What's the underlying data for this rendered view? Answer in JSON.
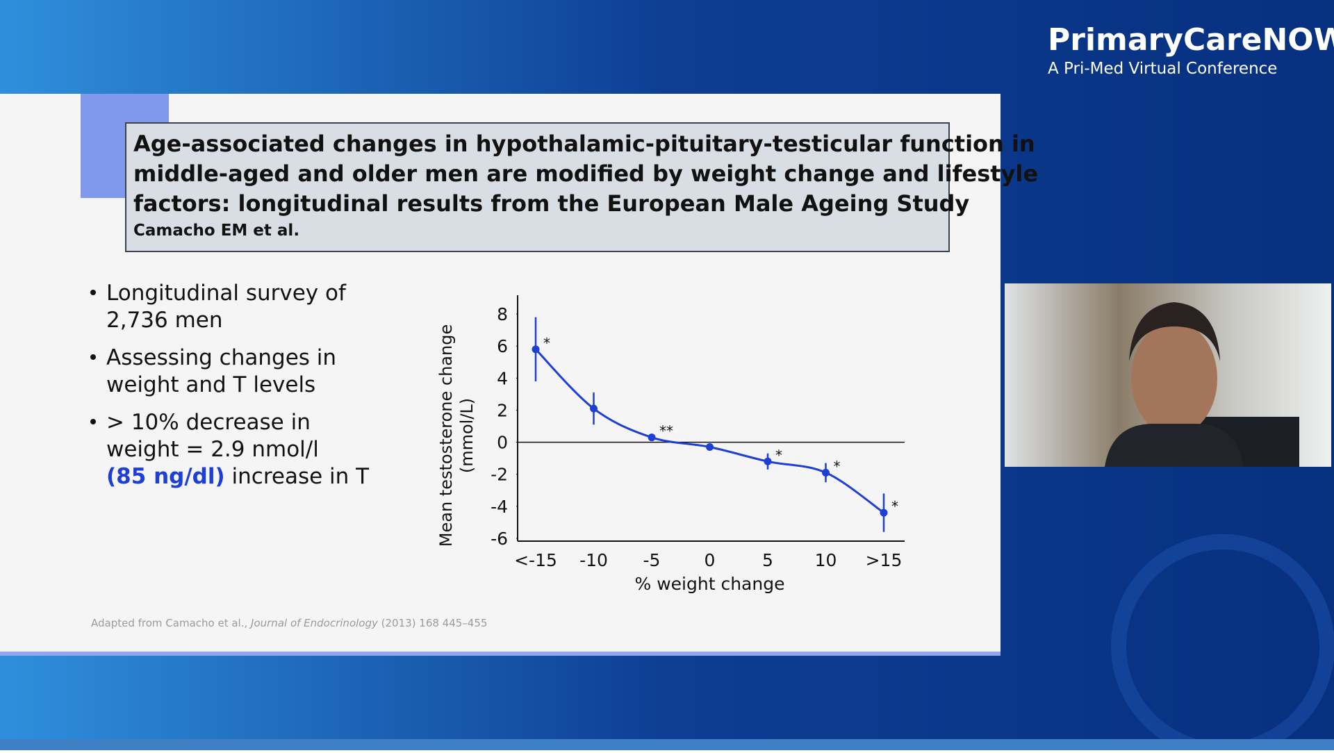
{
  "header": {
    "brand": "PrimaryCareNOW",
    "tagline": "A Pri-Med Virtual Conference"
  },
  "slide": {
    "title_lines": [
      "Age-associated changes in hypothalamic-pituitary-testicular function in",
      "middle-aged and older men are modified by weight change and lifestyle",
      "factors: longitudinal results from the European Male Ageing Study"
    ],
    "authors": "Camacho EM et al.",
    "bullets": [
      {
        "lines": [
          "Longitudinal survey of",
          "2,736 men"
        ]
      },
      {
        "lines": [
          "Assessing changes in",
          "weight and T levels"
        ]
      },
      {
        "lines": [
          "> 10% decrease in",
          "weight = 2.9 nmol/l"
        ],
        "highlight": "(85 ng/dl)",
        "tail": " increase in T"
      }
    ],
    "citation": {
      "before": "Adapted from Camacho et al., ",
      "journal": "Journal of Endocrinology",
      "after": " (2013) 168 445–455"
    }
  },
  "chart_data": {
    "type": "line",
    "x_label": "% weight change",
    "y_label_lines": [
      "Mean testosterone change",
      "(mmol/L)"
    ],
    "categories": [
      "<-15",
      "-10",
      "-5",
      "0",
      "5",
      "10",
      ">15"
    ],
    "values": [
      5.8,
      2.1,
      0.3,
      -0.3,
      -1.2,
      -1.9,
      -4.4
    ],
    "errors": [
      2.0,
      1.0,
      null,
      null,
      0.5,
      0.6,
      1.2
    ],
    "significance": [
      "*",
      null,
      "**",
      null,
      "*",
      "*",
      "*"
    ],
    "color": "#1d3fd6",
    "ylim": [
      -6,
      9
    ],
    "yticks": [
      -6,
      -4,
      -2,
      0,
      2,
      4,
      6,
      8
    ]
  }
}
